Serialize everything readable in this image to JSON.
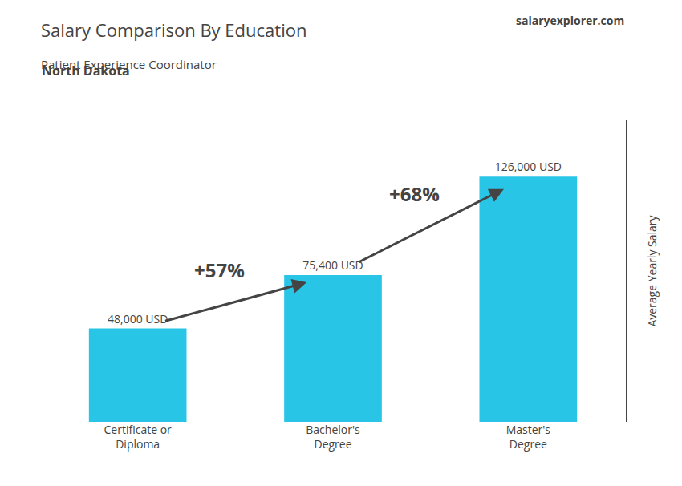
{
  "chart_data": {
    "type": "bar",
    "title": "Salary Comparison By Education",
    "subtitle": "Patient Experience Coordinator",
    "ylabel": "Average Yearly Salary",
    "categories": [
      "Certificate or\nDiploma",
      "Bachelor's\nDegree",
      "Master's\nDegree"
    ],
    "values": [
      48000,
      75400,
      126000
    ],
    "value_labels": [
      "48,000 USD",
      "75,400 USD",
      "126,000 USD"
    ],
    "data_labels": true,
    "color": "#29c5e6",
    "ylim": [
      0,
      155000
    ],
    "grid": false,
    "tick_labels": "x",
    "annotations": [
      "North Dakota",
      "salaryexplorer.com",
      "+57%",
      "+68%"
    ]
  }
}
